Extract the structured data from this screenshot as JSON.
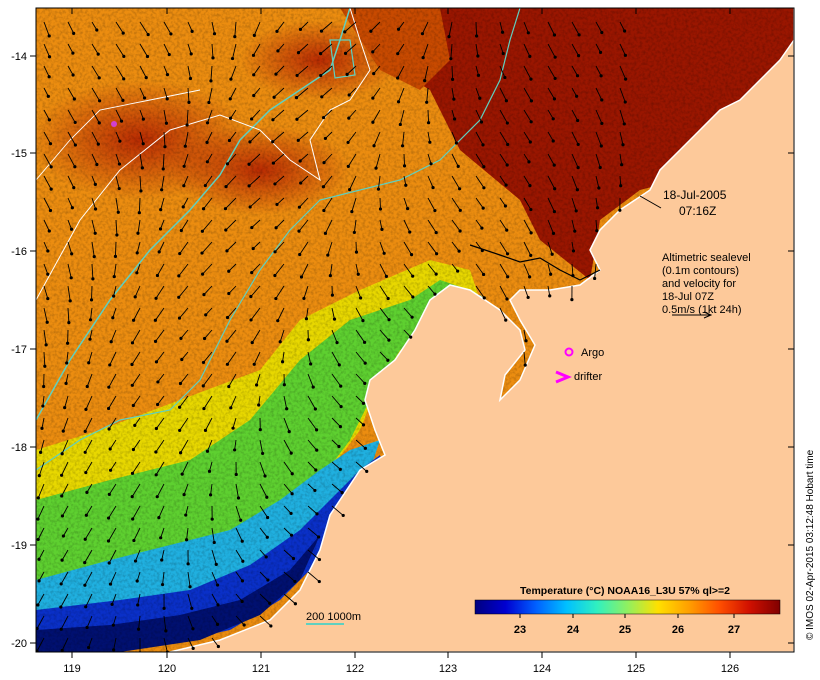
{
  "map": {
    "lon_ticks": [
      "119",
      "120",
      "121",
      "122",
      "123",
      "124",
      "125",
      "126"
    ],
    "lat_ticks": [
      "-14",
      "-15",
      "-16",
      "-17",
      "-18",
      "-19",
      "-20"
    ],
    "date_line1": "18-Jul-2005",
    "date_line2": "07:16Z",
    "velocity_note": [
      "Altimetric sealevel",
      "(0.1m contours)",
      "and velocity for",
      "18-Jul 07Z",
      "0.5m/s (1kt 24h)"
    ],
    "argo_label": "Argo",
    "drifter_label": "drifter",
    "bathy_label": "200  1000m",
    "colorbar_title": "Temperature (°C) NOAA16_L3U 57% ql>=2",
    "colorbar_ticks": [
      "23",
      "24",
      "25",
      "26",
      "27"
    ],
    "credit": "© IMOS 02-Apr-2015 03:12:48 Hobart time",
    "colors": {
      "land": "#fdc99a",
      "argo": "#ff00ff",
      "drifter": "#ff00ff",
      "bathy_200": "#5fd0c0",
      "bathy_1000": "#ffffff",
      "colorbar": [
        "#000080",
        "#0000d0",
        "#0060ff",
        "#00c0ff",
        "#30f0c0",
        "#90f060",
        "#ffe000",
        "#ffa000",
        "#ff5000",
        "#d01000",
        "#800000"
      ]
    }
  }
}
